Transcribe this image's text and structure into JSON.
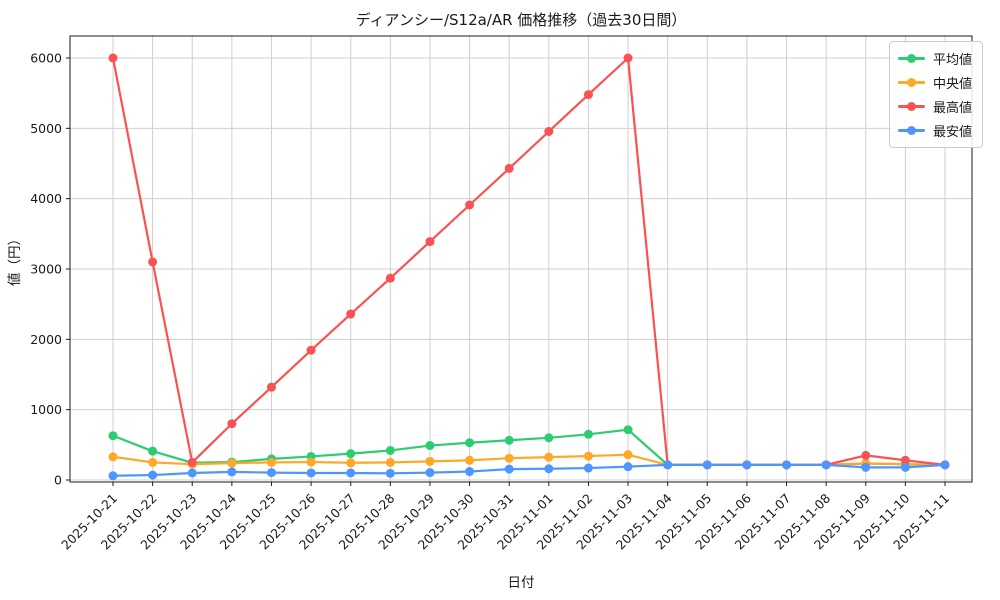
{
  "chart_data": {
    "type": "line",
    "title": "ディアンシー/S12a/AR 価格推移（過去30日間）",
    "xlabel": "日付",
    "ylabel": "値（円）",
    "ylim": [
      0,
      6000
    ],
    "yticks": [
      0,
      1000,
      2000,
      3000,
      4000,
      5000,
      6000
    ],
    "grid": true,
    "legend_position": "upper-right",
    "grid_color": "#cfcfcf",
    "spine_color": "#1a1a1a",
    "categories": [
      "2025-10-21",
      "2025-10-22",
      "2025-10-23",
      "2025-10-24",
      "2025-10-25",
      "2025-10-26",
      "2025-10-27",
      "2025-10-28",
      "2025-10-29",
      "2025-10-30",
      "2025-10-31",
      "2025-11-01",
      "2025-11-02",
      "2025-11-03",
      "2025-11-04",
      "2025-11-05",
      "2025-11-06",
      "2025-11-07",
      "2025-11-08",
      "2025-11-09",
      "2025-11-10",
      "2025-11-11"
    ],
    "series": [
      {
        "key": "average",
        "name": "平均値",
        "color": "#2ecc71",
        "values": [
          630,
          410,
          245,
          255,
          300,
          335,
          375,
          420,
          490,
          530,
          565,
          600,
          650,
          715,
          215,
          215,
          215,
          215,
          215,
          235,
          225,
          215
        ]
      },
      {
        "key": "median",
        "name": "中央値",
        "color": "#ffa726",
        "values": [
          330,
          250,
          225,
          240,
          250,
          255,
          245,
          250,
          265,
          280,
          310,
          325,
          340,
          360,
          215,
          215,
          215,
          215,
          215,
          235,
          225,
          215
        ]
      },
      {
        "key": "max",
        "name": "最高値",
        "color": "#fa5252",
        "values": [
          6000,
          3100,
          250,
          800,
          1320,
          1845,
          2360,
          2870,
          3390,
          3910,
          4430,
          4955,
          5480,
          6000,
          215,
          215,
          215,
          215,
          215,
          350,
          280,
          215
        ]
      },
      {
        "key": "min",
        "name": "最安値",
        "color": "#4d96ff",
        "values": [
          60,
          70,
          100,
          115,
          105,
          100,
          100,
          95,
          105,
          120,
          155,
          160,
          170,
          190,
          215,
          215,
          215,
          215,
          215,
          180,
          180,
          215
        ]
      }
    ]
  }
}
